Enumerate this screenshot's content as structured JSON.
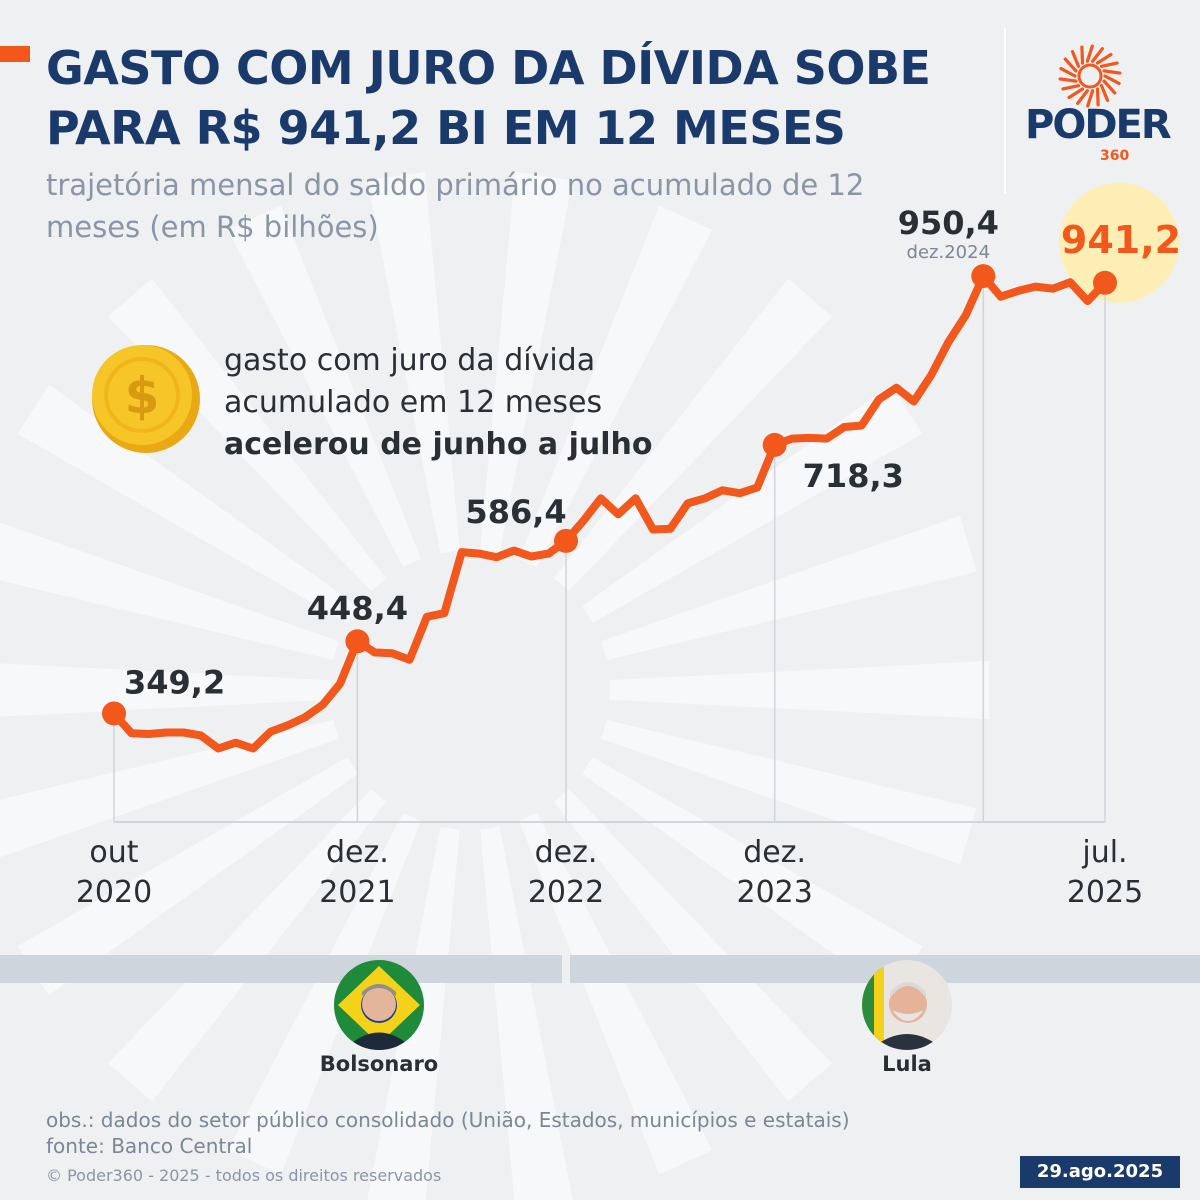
{
  "header": {
    "title": "GASTO COM JURO DA DÍVIDA SOBE PARA R$ 941,2 BI EM 12 MESES",
    "subtitle": "trajetória mensal do saldo primário no acumulado de 12 meses (em R$ bilhões)"
  },
  "logo": {
    "name": "PODER",
    "number": "360",
    "name_color": "#1a3a6b",
    "accent_color": "#f2571c"
  },
  "annotation": {
    "line1": "gasto com juro da dívida",
    "line2": "acumulado em 12 meses",
    "line3": "acelerou de junho a julho",
    "icon": "dollar-coin-icon"
  },
  "chart_data": {
    "type": "line",
    "title": "GASTO COM JURO DA DÍVIDA SOBE PARA R$ 941,2 BI EM 12 MESES",
    "subtitle": "trajetória mensal do saldo primário no acumulado de 12 meses (em R$ bilhões)",
    "xlabel": "",
    "ylabel": "",
    "ylim": [
      200,
      1000
    ],
    "grid": false,
    "line_color": "#f2571c",
    "x": [
      "out 2020",
      "nov 2020",
      "dez 2020",
      "jan 2021",
      "fev 2021",
      "mar 2021",
      "abr 2021",
      "mai 2021",
      "jun 2021",
      "jul 2021",
      "ago 2021",
      "set 2021",
      "out 2021",
      "nov 2021",
      "dez 2021",
      "jan 2022",
      "fev 2022",
      "mar 2022",
      "abr 2022",
      "mai 2022",
      "jun 2022",
      "jul 2022",
      "ago 2022",
      "set 2022",
      "out 2022",
      "nov 2022",
      "dez 2022",
      "jan 2023",
      "fev 2023",
      "mar 2023",
      "abr 2023",
      "mai 2023",
      "jun 2023",
      "jul 2023",
      "ago 2023",
      "set 2023",
      "out 2023",
      "nov 2023",
      "dez 2023",
      "jan 2024",
      "fev 2024",
      "mar 2024",
      "abr 2024",
      "mai 2024",
      "jun 2024",
      "jul 2024",
      "ago 2024",
      "set 2024",
      "out 2024",
      "nov 2024",
      "dez 2024",
      "jan 2025",
      "fev 2025",
      "mar 2025",
      "abr 2025",
      "mai 2025",
      "jun 2025",
      "jul 2025"
    ],
    "values": [
      349.2,
      322,
      321,
      323,
      323,
      319,
      301,
      309,
      301,
      324,
      333,
      344,
      361,
      390,
      448.4,
      433,
      432,
      423,
      482,
      487,
      571,
      569,
      564,
      573,
      565,
      569,
      586.4,
      614,
      645,
      623,
      645,
      602,
      603,
      638,
      645,
      656,
      652,
      660,
      718.3,
      727,
      728,
      727,
      743,
      745,
      781,
      797,
      778,
      814,
      860,
      897,
      950.4,
      922,
      930,
      936,
      933,
      942,
      916,
      941.2
    ],
    "tick_labels": [
      {
        "index": 0,
        "line1": "out",
        "line2": "2020"
      },
      {
        "index": 14,
        "line1": "dez.",
        "line2": "2021"
      },
      {
        "index": 26,
        "line1": "dez.",
        "line2": "2022"
      },
      {
        "index": 38,
        "line1": "dez.",
        "line2": "2023"
      },
      {
        "index": 57,
        "line1": "jul.",
        "line2": "2025"
      }
    ],
    "data_labels": [
      {
        "index": 0,
        "text": "349,2"
      },
      {
        "index": 14,
        "text": "448,4"
      },
      {
        "index": 26,
        "text": "586,4"
      },
      {
        "index": 38,
        "text": "718,3"
      },
      {
        "index": 50,
        "text": "950,4",
        "sub": "dez.2024"
      },
      {
        "index": 57,
        "text": "941,2",
        "highlight": true
      }
    ]
  },
  "presidents": [
    {
      "name": "Bolsonaro",
      "avatar_icon": "bolsonaro-avatar-icon"
    },
    {
      "name": "Lula",
      "avatar_icon": "lula-avatar-icon"
    }
  ],
  "notes": {
    "obs": "obs.: dados do setor público consolidado (União, Estados, municípios e estatais)",
    "source": "fonte: Banco Central"
  },
  "footer": {
    "copyright": "© Poder360 - 2025 - todos os direitos reservados",
    "date": "29.ago.2025"
  }
}
